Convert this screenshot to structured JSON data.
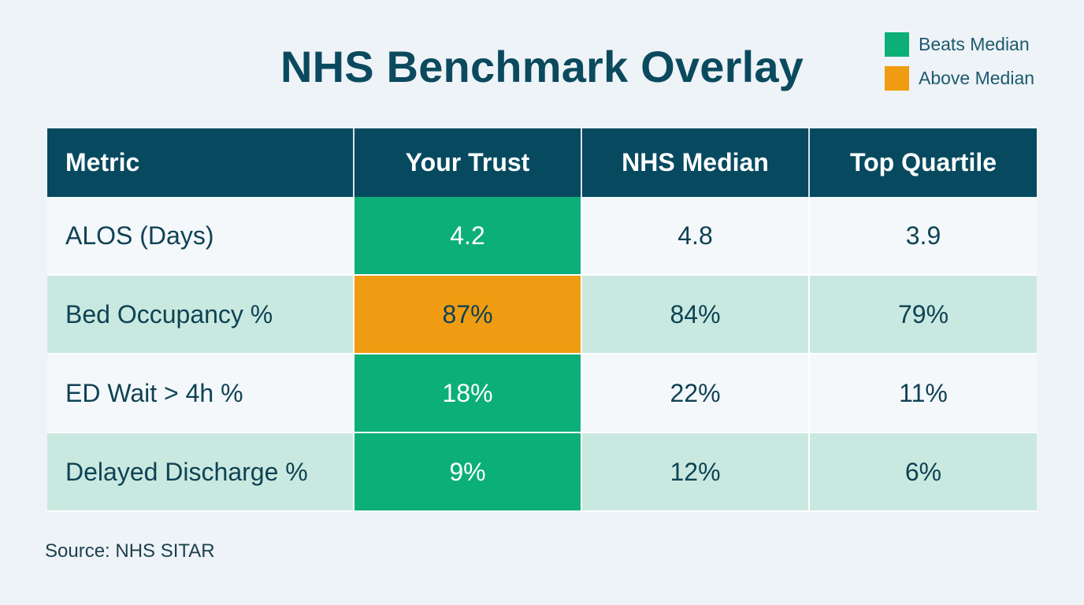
{
  "chart_data": {
    "type": "table",
    "title": "NHS Benchmark Overlay",
    "columns": [
      "Metric",
      "Your Trust",
      "NHS Median",
      "Top Quartile"
    ],
    "rows": [
      {
        "metric": "ALOS (Days)",
        "your_trust": "4.2",
        "nhs_median": "4.8",
        "top_quartile": "3.9",
        "status": "beats"
      },
      {
        "metric": "Bed Occupancy %",
        "your_trust": "87%",
        "nhs_median": "84%",
        "top_quartile": "79%",
        "status": "above"
      },
      {
        "metric": "ED Wait > 4h %",
        "your_trust": "18%",
        "nhs_median": "22%",
        "top_quartile": "11%",
        "status": "beats"
      },
      {
        "metric": "Delayed Discharge %",
        "your_trust": "9%",
        "nhs_median": "12%",
        "top_quartile": "6%",
        "status": "beats"
      }
    ],
    "legend": [
      {
        "key": "beats",
        "label": "Beats Median",
        "color": "#0caf78"
      },
      {
        "key": "above",
        "label": "Above Median",
        "color": "#f09c12"
      }
    ],
    "legend_placement": "top-right",
    "source": "Source: NHS SITAR"
  }
}
